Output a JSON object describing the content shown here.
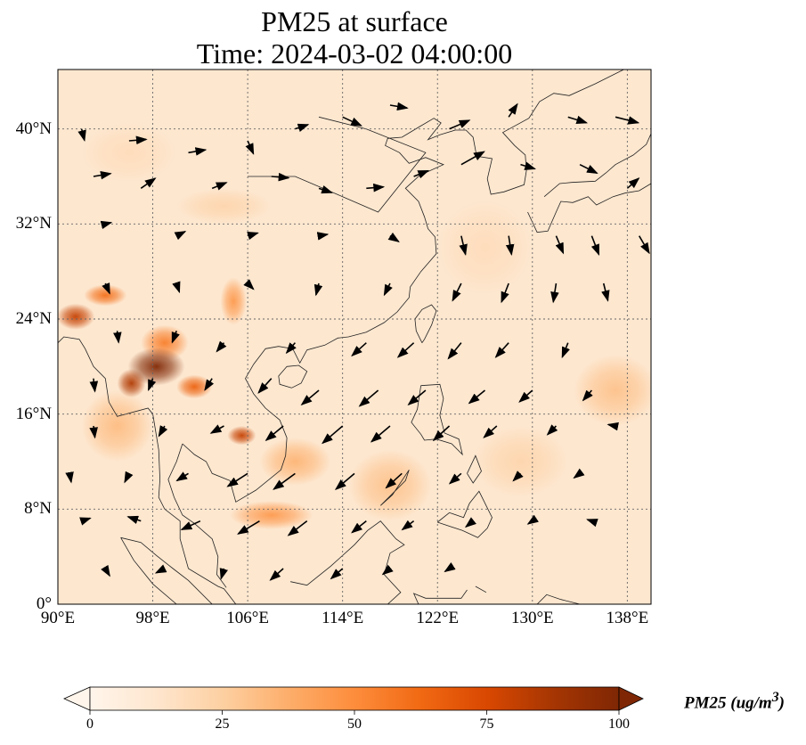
{
  "title": {
    "line1": "PM25 at surface",
    "line2": "Time: 2024-03-02 04:00:00"
  },
  "map": {
    "extent": {
      "lon_min": 90,
      "lon_max": 140,
      "lat_min": 0,
      "lat_max": 45
    },
    "lat_ticks": [
      {
        "value": 0,
        "label": "0°"
      },
      {
        "value": 8,
        "label": "8°N"
      },
      {
        "value": 16,
        "label": "16°N"
      },
      {
        "value": 24,
        "label": "24°N"
      },
      {
        "value": 32,
        "label": "32°N"
      },
      {
        "value": 40,
        "label": "40°N"
      }
    ],
    "lon_ticks": [
      {
        "value": 90,
        "label": "90°E"
      },
      {
        "value": 98,
        "label": "98°E"
      },
      {
        "value": 106,
        "label": "106°E"
      },
      {
        "value": 114,
        "label": "114°E"
      },
      {
        "value": 122,
        "label": "122°E"
      },
      {
        "value": 130,
        "label": "130°E"
      },
      {
        "value": 138,
        "label": "138°E"
      }
    ],
    "gridlines": true,
    "hotspots": [
      {
        "lon": 98.3,
        "lat": 20.0,
        "value": 100,
        "rx": 2.4,
        "ry": 1.6
      },
      {
        "lon": 96.2,
        "lat": 18.6,
        "value": 85,
        "rx": 1.2,
        "ry": 1.2
      },
      {
        "lon": 91.5,
        "lat": 24.2,
        "value": 80,
        "rx": 1.6,
        "ry": 1.1
      },
      {
        "lon": 94.0,
        "lat": 26.0,
        "value": 60,
        "rx": 1.8,
        "ry": 0.9
      },
      {
        "lon": 101.5,
        "lat": 18.3,
        "value": 65,
        "rx": 1.5,
        "ry": 1.0
      },
      {
        "lon": 105.5,
        "lat": 14.2,
        "value": 80,
        "rx": 1.2,
        "ry": 0.8
      },
      {
        "lon": 104.8,
        "lat": 25.5,
        "value": 45,
        "rx": 1.1,
        "ry": 2.0
      },
      {
        "lon": 99.0,
        "lat": 22.0,
        "value": 55,
        "rx": 2.0,
        "ry": 1.5
      },
      {
        "lon": 108.0,
        "lat": 7.5,
        "value": 45,
        "rx": 3.5,
        "ry": 1.2
      },
      {
        "lon": 110.0,
        "lat": 12.0,
        "value": 35,
        "rx": 3.0,
        "ry": 2.0
      },
      {
        "lon": 95.0,
        "lat": 15.0,
        "value": 32,
        "rx": 3.0,
        "ry": 3.0
      },
      {
        "lon": 118.0,
        "lat": 10.0,
        "value": 30,
        "rx": 3.5,
        "ry": 3.0
      },
      {
        "lon": 137.0,
        "lat": 18.0,
        "value": 30,
        "rx": 3.5,
        "ry": 3.0
      },
      {
        "lon": 129.0,
        "lat": 12.0,
        "value": 22,
        "rx": 4.0,
        "ry": 3.0
      },
      {
        "lon": 104.0,
        "lat": 33.5,
        "value": 22,
        "rx": 4.0,
        "ry": 1.5
      },
      {
        "lon": 96.0,
        "lat": 38.0,
        "value": 18,
        "rx": 4.0,
        "ry": 2.5
      },
      {
        "lon": 126.0,
        "lat": 30.0,
        "value": 18,
        "rx": 4.0,
        "ry": 4.0
      }
    ],
    "wind_vectors": [
      [
        92,
        40,
        0.2,
        -0.8
      ],
      [
        96,
        39,
        1.2,
        0.1
      ],
      [
        101,
        38,
        1.2,
        0.2
      ],
      [
        106,
        39,
        0.4,
        -0.9
      ],
      [
        110,
        40,
        0.9,
        0.3
      ],
      [
        114,
        41,
        1.3,
        -0.6
      ],
      [
        118,
        42,
        1.2,
        -0.2
      ],
      [
        123,
        40,
        1.4,
        0.6
      ],
      [
        128,
        41,
        0.6,
        0.9
      ],
      [
        133,
        41,
        1.3,
        -0.4
      ],
      [
        137,
        41,
        1.6,
        -0.4
      ],
      [
        93,
        36,
        1.2,
        0.2
      ],
      [
        97,
        35,
        1.0,
        0.7
      ],
      [
        103,
        35,
        1.0,
        0.4
      ],
      [
        108,
        36,
        1.2,
        -0.1
      ],
      [
        112,
        35,
        0.9,
        -0.3
      ],
      [
        116,
        35,
        1.2,
        0.1
      ],
      [
        120,
        36,
        1.0,
        0.4
      ],
      [
        124,
        37,
        1.6,
        0.9
      ],
      [
        129,
        37,
        1.0,
        -0.3
      ],
      [
        134,
        37,
        1.2,
        -0.6
      ],
      [
        138,
        35,
        0.8,
        0.7
      ],
      [
        94,
        32,
        0.4,
        0.1
      ],
      [
        100,
        31,
        0.6,
        0.3
      ],
      [
        106,
        31,
        0.7,
        0.2
      ],
      [
        112,
        31,
        0.6,
        0.1
      ],
      [
        118,
        31,
        0.6,
        -0.4
      ],
      [
        124,
        31,
        0.3,
        -1.3
      ],
      [
        128,
        31,
        0.2,
        -1.3
      ],
      [
        132,
        31,
        0.5,
        -1.2
      ],
      [
        135,
        31,
        0.5,
        -1.3
      ],
      [
        139,
        31,
        0.7,
        -1.2
      ],
      [
        94,
        27,
        0.3,
        -0.7
      ],
      [
        100,
        27,
        0.2,
        -0.6
      ],
      [
        106,
        27,
        0.4,
        -0.4
      ],
      [
        112,
        27,
        -0.2,
        -0.8
      ],
      [
        118,
        27,
        -0.4,
        -0.8
      ],
      [
        124,
        27,
        -0.6,
        -1.2
      ],
      [
        128,
        27,
        -0.5,
        -1.3
      ],
      [
        132,
        27,
        -0.2,
        -1.3
      ],
      [
        136,
        27,
        0.3,
        -1.2
      ],
      [
        95,
        23,
        0.1,
        -0.8
      ],
      [
        100,
        23,
        -0.3,
        -0.8
      ],
      [
        104,
        22,
        -0.5,
        -0.6
      ],
      [
        110,
        22,
        -0.6,
        -0.7
      ],
      [
        116,
        22,
        -1.0,
        -0.9
      ],
      [
        120,
        22,
        -1.1,
        -1.0
      ],
      [
        124,
        22,
        -0.9,
        -1.1
      ],
      [
        128,
        22,
        -0.9,
        -1.0
      ],
      [
        133,
        22,
        -0.4,
        -1.0
      ],
      [
        93,
        19,
        0.1,
        -0.9
      ],
      [
        98,
        19,
        -0.3,
        -0.8
      ],
      [
        103,
        19,
        -0.5,
        -0.8
      ],
      [
        108,
        19,
        -0.9,
        -1.0
      ],
      [
        112,
        18,
        -1.2,
        -1.0
      ],
      [
        117,
        18,
        -1.3,
        -1.1
      ],
      [
        121,
        18,
        -1.2,
        -1.0
      ],
      [
        126,
        18,
        -1.1,
        -0.9
      ],
      [
        130,
        18,
        -0.9,
        -0.8
      ],
      [
        135,
        18,
        -0.6,
        -0.7
      ],
      [
        93,
        15,
        0.1,
        -0.8
      ],
      [
        99,
        15,
        -0.4,
        -0.7
      ],
      [
        104,
        15,
        -0.9,
        -0.5
      ],
      [
        109,
        15,
        -1.2,
        -1.0
      ],
      [
        114,
        15,
        -1.4,
        -1.2
      ],
      [
        118,
        15,
        -1.3,
        -1.1
      ],
      [
        123,
        15,
        -1.1,
        -1.0
      ],
      [
        127,
        15,
        -0.9,
        -0.8
      ],
      [
        132,
        15,
        -0.6,
        -0.6
      ],
      [
        137,
        15,
        -0.5,
        0.1
      ],
      [
        91,
        11,
        0.1,
        -0.6
      ],
      [
        96,
        11,
        -0.3,
        -0.6
      ],
      [
        101,
        11,
        -0.8,
        -0.5
      ],
      [
        106,
        11,
        -1.4,
        -0.9
      ],
      [
        110,
        11,
        -1.5,
        -1.1
      ],
      [
        115,
        11,
        -1.3,
        -1.1
      ],
      [
        119,
        11,
        -1.1,
        -1.0
      ],
      [
        124,
        11,
        -0.8,
        -0.7
      ],
      [
        129,
        11,
        -0.5,
        -0.5
      ],
      [
        134,
        11,
        -0.4,
        -0.3
      ],
      [
        92,
        7,
        0.6,
        0.2
      ],
      [
        97,
        7,
        -0.9,
        0.3
      ],
      [
        102,
        7,
        -1.3,
        -0.6
      ],
      [
        107,
        7,
        -1.5,
        -0.9
      ],
      [
        111,
        7,
        -1.3,
        -1.0
      ],
      [
        116,
        7,
        -1.0,
        -0.8
      ],
      [
        120,
        7,
        -0.8,
        -0.6
      ],
      [
        125,
        7,
        -0.5,
        -0.4
      ],
      [
        130,
        7,
        -0.3,
        -0.2
      ],
      [
        135,
        7,
        -0.3,
        0.1
      ],
      [
        94,
        3,
        0.3,
        -0.5
      ],
      [
        99,
        3,
        -0.6,
        -0.3
      ],
      [
        104,
        3,
        -0.2,
        -0.7
      ],
      [
        109,
        3,
        -0.9,
        -0.8
      ],
      [
        114,
        3,
        -0.8,
        -0.7
      ],
      [
        118,
        3,
        -0.5,
        -0.4
      ],
      [
        123,
        3,
        -0.3,
        -0.2
      ]
    ]
  },
  "colorbar": {
    "label": "PM25 (ug/m",
    "label_sup": "3",
    "label_end": ")",
    "min": 0,
    "max": 100,
    "ticks": [
      "0",
      "25",
      "50",
      "75",
      "100"
    ],
    "colors": [
      "#fff5eb",
      "#fee6ce",
      "#fdd0a2",
      "#fdae6b",
      "#fd8d3c",
      "#f16913",
      "#d94801",
      "#a63603",
      "#7f2704"
    ],
    "extend": "both"
  },
  "chart_data": {
    "type": "heatmap",
    "title": "PM25 at surface\nTime: 2024-03-02 04:00:00",
    "xlabel": "",
    "ylabel": "",
    "xlim": [
      90,
      140
    ],
    "ylim": [
      0,
      45
    ],
    "x_ticks": [
      "90°E",
      "98°E",
      "106°E",
      "114°E",
      "122°E",
      "130°E",
      "138°E"
    ],
    "y_ticks": [
      "0°",
      "8°N",
      "16°N",
      "24°N",
      "32°N",
      "40°N"
    ],
    "colorbar_range": [
      0,
      100
    ],
    "colorbar_label": "PM25 (ug/m3)",
    "grid": true
  }
}
